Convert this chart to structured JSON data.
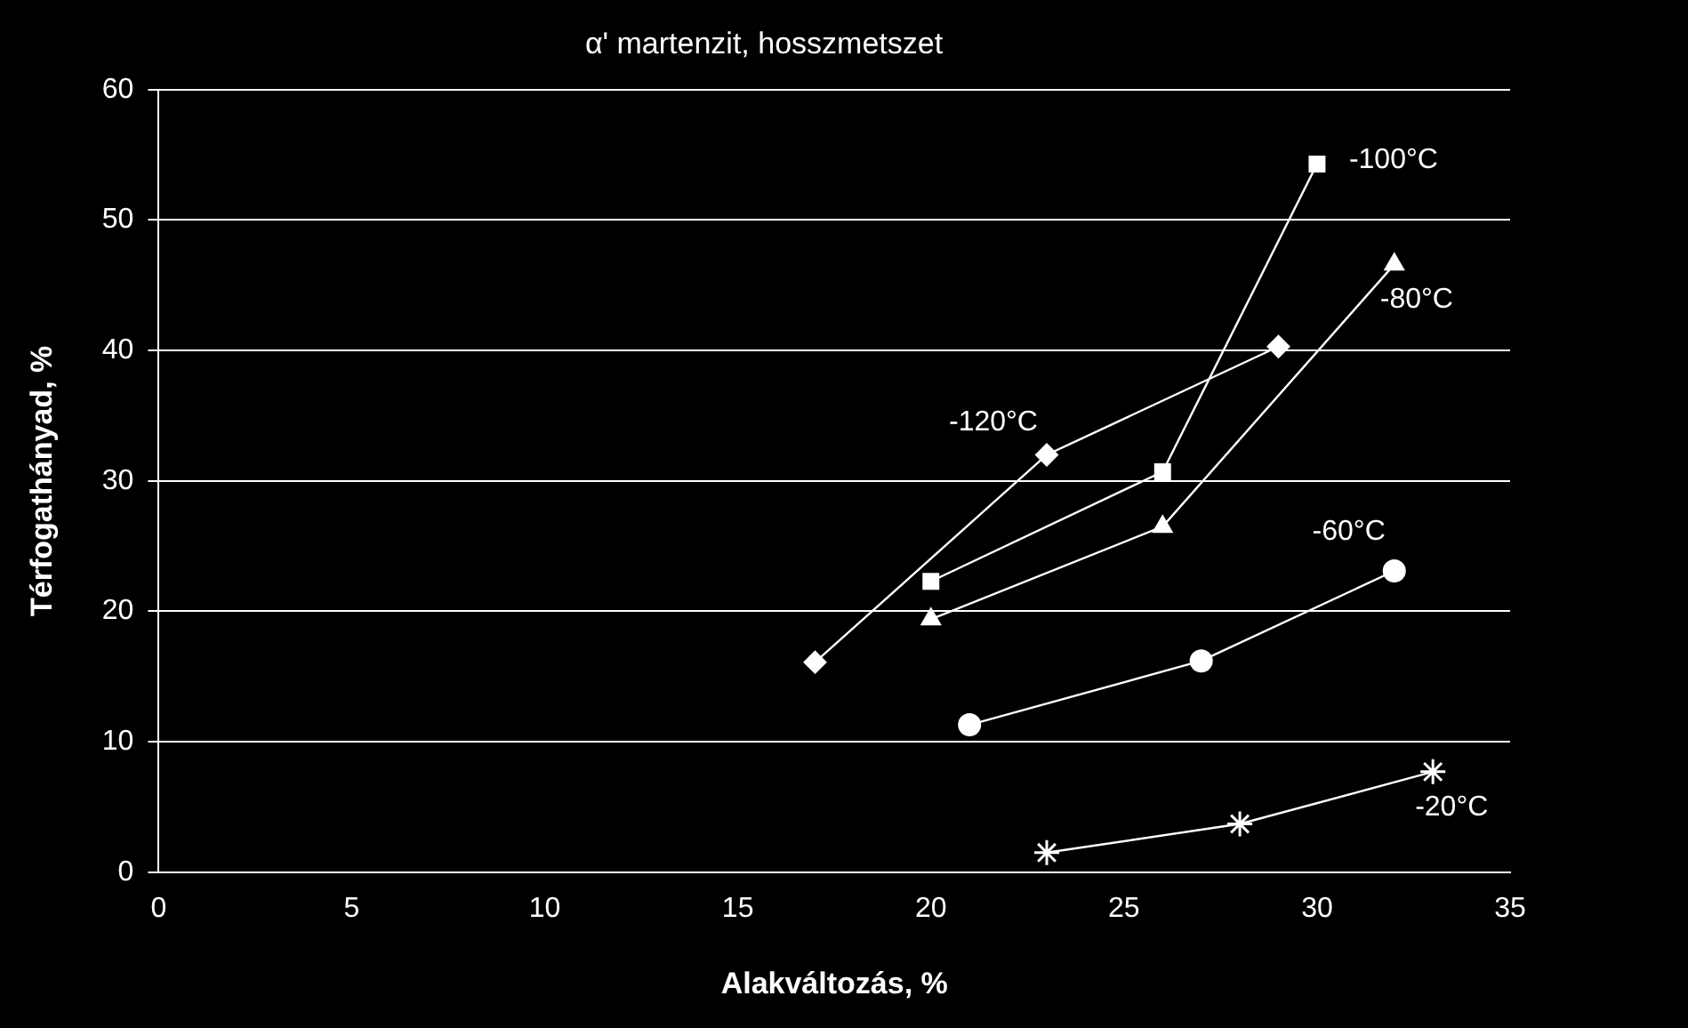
{
  "chart_data": {
    "type": "line",
    "title": "α' martenzit, hosszmetszet",
    "xlabel": "Alakváltozás, %",
    "ylabel": "Térfogathányad, %",
    "xlim": [
      0,
      35
    ],
    "xticks": [
      0,
      5,
      10,
      15,
      20,
      25,
      30,
      35
    ],
    "ylim": [
      0,
      60
    ],
    "yticks": [
      0,
      10,
      20,
      30,
      40,
      50,
      60
    ],
    "grid": "y",
    "legend": false,
    "series": [
      {
        "name": "-120°C",
        "color": "#ffffff",
        "marker": "diamond",
        "x": [
          17,
          23,
          29
        ],
        "values": [
          16.1,
          32.0,
          40.3
        ]
      },
      {
        "name": "-100°C",
        "color": "#ffffff",
        "marker": "square",
        "x": [
          20,
          26,
          30
        ],
        "values": [
          22.3,
          30.7,
          54.3
        ]
      },
      {
        "name": "-80°C",
        "color": "#ffffff",
        "marker": "triangle",
        "x": [
          20,
          26,
          32
        ],
        "values": [
          19.4,
          26.5,
          46.6
        ]
      },
      {
        "name": "-60°C",
        "color": "#ffffff",
        "marker": "circle",
        "x": [
          21,
          27,
          32
        ],
        "values": [
          11.3,
          16.2,
          23.1
        ]
      },
      {
        "name": "-20°C",
        "color": "#ffffff",
        "marker": "cross",
        "x": [
          23,
          28,
          33
        ],
        "values": [
          1.5,
          3.7,
          7.7
        ]
      }
    ]
  }
}
